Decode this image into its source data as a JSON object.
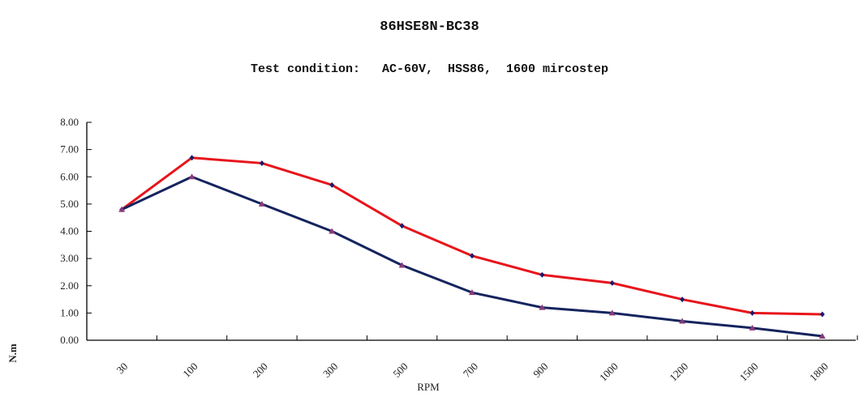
{
  "chart_data": {
    "type": "line",
    "title": "86HSE8N-BC38",
    "subtitle": "Test condition:   AC-60V,  HSS86,  1600 mircostep",
    "xlabel": "RPM",
    "ylabel": "N.m",
    "categories": [
      "30",
      "100",
      "200",
      "300",
      "500",
      "700",
      "900",
      "1000",
      "1200",
      "1500",
      "1800"
    ],
    "ylim": [
      0,
      8
    ],
    "yticks": [
      "0.00",
      "1.00",
      "2.00",
      "3.00",
      "4.00",
      "5.00",
      "6.00",
      "7.00",
      "8.00"
    ],
    "grid": false,
    "series": [
      {
        "name": "red",
        "color": "#e8141b",
        "marker": "diamond",
        "marker_color": "#1a1a6e",
        "values": [
          4.8,
          6.7,
          6.5,
          5.7,
          4.2,
          3.1,
          2.4,
          2.1,
          1.5,
          1.0,
          0.95
        ]
      },
      {
        "name": "navy",
        "color": "#15245e",
        "marker": "triangle",
        "marker_color": "#8a3a7a",
        "values": [
          4.8,
          6.0,
          5.0,
          4.0,
          2.75,
          1.75,
          1.2,
          1.0,
          0.7,
          0.45,
          0.15
        ]
      }
    ]
  }
}
